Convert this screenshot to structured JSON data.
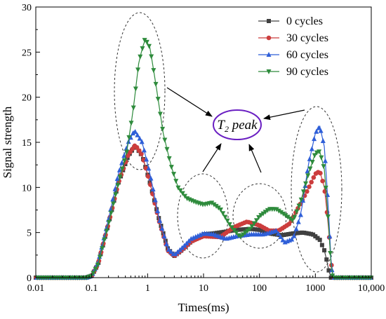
{
  "chart_data": {
    "type": "line",
    "xlabel": "Times(ms)",
    "ylabel": "Signal strength",
    "x_scale": "log",
    "xlim": [
      0.01,
      10000
    ],
    "ylim": [
      0,
      30
    ],
    "x_ticks": [
      {
        "value": 0.01,
        "label": "0.01"
      },
      {
        "value": 0.1,
        "label": "0.1"
      },
      {
        "value": 1,
        "label": "1"
      },
      {
        "value": 10,
        "label": "10"
      },
      {
        "value": 100,
        "label": "100"
      },
      {
        "value": 1000,
        "label": "1000"
      },
      {
        "value": 10000,
        "label": "10,000"
      }
    ],
    "y_ticks": [
      {
        "value": 0,
        "label": "0"
      },
      {
        "value": 5,
        "label": "5"
      },
      {
        "value": 10,
        "label": "10"
      },
      {
        "value": 15,
        "label": "15"
      },
      {
        "value": 20,
        "label": "20"
      },
      {
        "value": 25,
        "label": "25"
      },
      {
        "value": 30,
        "label": "30"
      }
    ],
    "grid": false,
    "legend_position": "top-right",
    "annotation": {
      "text": "T",
      "subscript": "2",
      "suffix": " peak"
    },
    "series": [
      {
        "name": "0 cycles",
        "color": "#404040",
        "marker": "square",
        "points": [
          [
            0.01,
            0
          ],
          [
            0.08,
            0
          ],
          [
            0.1,
            0.2
          ],
          [
            0.13,
            1.5
          ],
          [
            0.2,
            6
          ],
          [
            0.3,
            10.5
          ],
          [
            0.45,
            13.5
          ],
          [
            0.6,
            14.6
          ],
          [
            0.8,
            13.5
          ],
          [
            1.1,
            10.5
          ],
          [
            1.6,
            6.5
          ],
          [
            2.3,
            3.2
          ],
          [
            3,
            2.4
          ],
          [
            4,
            3
          ],
          [
            6,
            4
          ],
          [
            10,
            4.8
          ],
          [
            15,
            4.9
          ],
          [
            25,
            5.1
          ],
          [
            40,
            5.3
          ],
          [
            70,
            5.4
          ],
          [
            100,
            5.3
          ],
          [
            150,
            4.9
          ],
          [
            250,
            4.7
          ],
          [
            400,
            4.9
          ],
          [
            600,
            5
          ],
          [
            900,
            4.8
          ],
          [
            1200,
            4.2
          ],
          [
            1500,
            2.8
          ],
          [
            1700,
            1
          ],
          [
            1900,
            0
          ],
          [
            10000,
            0
          ]
        ]
      },
      {
        "name": "30 cycles",
        "color": "#cc3d3d",
        "marker": "circle",
        "points": [
          [
            0.01,
            0
          ],
          [
            0.08,
            0
          ],
          [
            0.1,
            0.2
          ],
          [
            0.13,
            1.5
          ],
          [
            0.2,
            6
          ],
          [
            0.3,
            10.5
          ],
          [
            0.45,
            13.6
          ],
          [
            0.6,
            14.7
          ],
          [
            0.8,
            13.6
          ],
          [
            1.1,
            10.5
          ],
          [
            1.6,
            6.3
          ],
          [
            2.3,
            3
          ],
          [
            3,
            2.4
          ],
          [
            4,
            3
          ],
          [
            6,
            4
          ],
          [
            10,
            4.6
          ],
          [
            20,
            4.5
          ],
          [
            35,
            5.6
          ],
          [
            60,
            6.2
          ],
          [
            100,
            5.8
          ],
          [
            150,
            5.2
          ],
          [
            220,
            5.2
          ],
          [
            350,
            6
          ],
          [
            500,
            7.8
          ],
          [
            700,
            9.5
          ],
          [
            1000,
            11.5
          ],
          [
            1200,
            11.8
          ],
          [
            1450,
            10
          ],
          [
            1700,
            6
          ],
          [
            1900,
            2
          ],
          [
            2050,
            0
          ],
          [
            10000,
            0
          ]
        ]
      },
      {
        "name": "60 cycles",
        "color": "#2f5fd8",
        "marker": "triangle-up",
        "points": [
          [
            0.01,
            0
          ],
          [
            0.08,
            0
          ],
          [
            0.1,
            0.2
          ],
          [
            0.13,
            1.7
          ],
          [
            0.2,
            6.5
          ],
          [
            0.3,
            11.5
          ],
          [
            0.45,
            15
          ],
          [
            0.58,
            16.3
          ],
          [
            0.8,
            15
          ],
          [
            1.1,
            11.5
          ],
          [
            1.6,
            6.6
          ],
          [
            2.3,
            3.2
          ],
          [
            3,
            2.5
          ],
          [
            4,
            3.2
          ],
          [
            6,
            4.3
          ],
          [
            10,
            4.9
          ],
          [
            15,
            4.8
          ],
          [
            25,
            4.3
          ],
          [
            40,
            4.6
          ],
          [
            70,
            4.8
          ],
          [
            120,
            4.8
          ],
          [
            200,
            5.2
          ],
          [
            280,
            3.9
          ],
          [
            400,
            4.3
          ],
          [
            550,
            7
          ],
          [
            750,
            12.5
          ],
          [
            1000,
            16
          ],
          [
            1200,
            16.8
          ],
          [
            1450,
            14.5
          ],
          [
            1700,
            8
          ],
          [
            1900,
            2
          ],
          [
            2050,
            0
          ],
          [
            10000,
            0
          ]
        ]
      },
      {
        "name": "90 cycles",
        "color": "#2e8b3c",
        "marker": "triangle-down",
        "points": [
          [
            0.01,
            0
          ],
          [
            0.08,
            0
          ],
          [
            0.1,
            0.2
          ],
          [
            0.13,
            1.5
          ],
          [
            0.2,
            6
          ],
          [
            0.3,
            10.5
          ],
          [
            0.42,
            13.8
          ],
          [
            0.55,
            18.5
          ],
          [
            0.7,
            24
          ],
          [
            0.9,
            26.5
          ],
          [
            1.1,
            25.5
          ],
          [
            1.4,
            21.5
          ],
          [
            1.9,
            16
          ],
          [
            2.6,
            12.5
          ],
          [
            3.5,
            10
          ],
          [
            5,
            8.8
          ],
          [
            7,
            8.4
          ],
          [
            10,
            8.1
          ],
          [
            14,
            8.3
          ],
          [
            20,
            7.6
          ],
          [
            30,
            5.8
          ],
          [
            45,
            4.5
          ],
          [
            70,
            5.5
          ],
          [
            100,
            6.8
          ],
          [
            150,
            7.6
          ],
          [
            200,
            7.6
          ],
          [
            280,
            7
          ],
          [
            400,
            6.3
          ],
          [
            550,
            8.5
          ],
          [
            750,
            11.5
          ],
          [
            1000,
            13.8
          ],
          [
            1200,
            14
          ],
          [
            1450,
            12
          ],
          [
            1700,
            6.5
          ],
          [
            1900,
            1.5
          ],
          [
            2050,
            0
          ],
          [
            10000,
            0
          ]
        ]
      }
    ]
  }
}
